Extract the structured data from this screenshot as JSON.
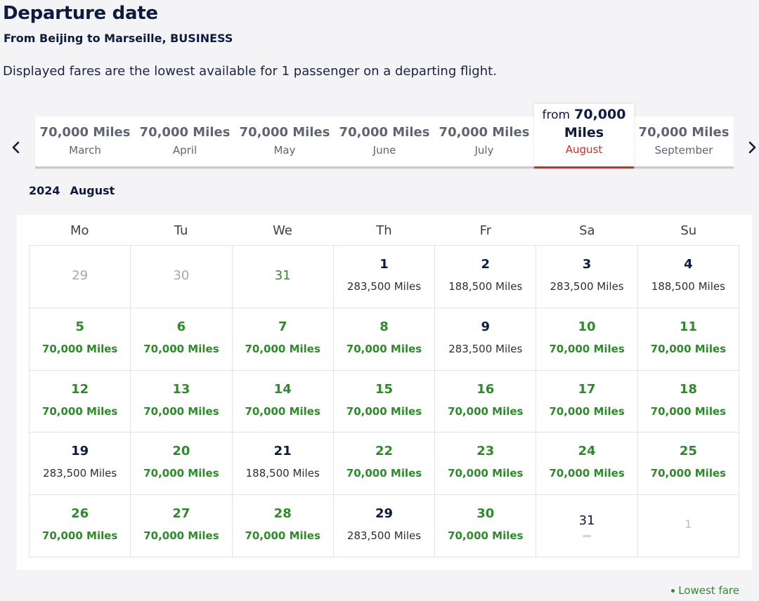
{
  "header": {
    "title": "Departure date",
    "subtitle": "From Beijing to Marseille, BUSINESS",
    "info": "Displayed fares are the lowest available for 1 passenger on a departing flight."
  },
  "months": [
    {
      "miles": "70,000 Miles",
      "name": "March"
    },
    {
      "miles": "70,000 Miles",
      "name": "April"
    },
    {
      "miles": "70,000 Miles",
      "name": "May"
    },
    {
      "miles": "70,000 Miles",
      "name": "June"
    },
    {
      "miles": "70,000 Miles",
      "name": "July"
    },
    {
      "miles": "70,000 Miles",
      "name": "September"
    }
  ],
  "active_month": {
    "prefix": "from",
    "amount": "70,000",
    "unit": "Miles",
    "name": "August"
  },
  "calendar": {
    "year": "2024",
    "month": "August",
    "weekdays": [
      "Mo",
      "Tu",
      "We",
      "Th",
      "Fr",
      "Sa",
      "Su"
    ],
    "days": [
      {
        "num": "29",
        "price": "",
        "kind": "out"
      },
      {
        "num": "30",
        "price": "",
        "kind": "out"
      },
      {
        "num": "31",
        "price": "",
        "kind": "out-green"
      },
      {
        "num": "1",
        "price": "283,500 Miles",
        "kind": "normal"
      },
      {
        "num": "2",
        "price": "188,500 Miles",
        "kind": "normal"
      },
      {
        "num": "3",
        "price": "283,500 Miles",
        "kind": "normal"
      },
      {
        "num": "4",
        "price": "188,500 Miles",
        "kind": "normal"
      },
      {
        "num": "5",
        "price": "70,000 Miles",
        "kind": "low"
      },
      {
        "num": "6",
        "price": "70,000 Miles",
        "kind": "low"
      },
      {
        "num": "7",
        "price": "70,000 Miles",
        "kind": "low"
      },
      {
        "num": "8",
        "price": "70,000 Miles",
        "kind": "low"
      },
      {
        "num": "9",
        "price": "283,500 Miles",
        "kind": "normal"
      },
      {
        "num": "10",
        "price": "70,000 Miles",
        "kind": "low"
      },
      {
        "num": "11",
        "price": "70,000 Miles",
        "kind": "low"
      },
      {
        "num": "12",
        "price": "70,000 Miles",
        "kind": "low"
      },
      {
        "num": "13",
        "price": "70,000 Miles",
        "kind": "low"
      },
      {
        "num": "14",
        "price": "70,000 Miles",
        "kind": "low"
      },
      {
        "num": "15",
        "price": "70,000 Miles",
        "kind": "low"
      },
      {
        "num": "16",
        "price": "70,000 Miles",
        "kind": "low"
      },
      {
        "num": "17",
        "price": "70,000 Miles",
        "kind": "low"
      },
      {
        "num": "18",
        "price": "70,000 Miles",
        "kind": "low"
      },
      {
        "num": "19",
        "price": "283,500 Miles",
        "kind": "normal"
      },
      {
        "num": "20",
        "price": "70,000 Miles",
        "kind": "low"
      },
      {
        "num": "21",
        "price": "188,500 Miles",
        "kind": "normal"
      },
      {
        "num": "22",
        "price": "70,000 Miles",
        "kind": "low"
      },
      {
        "num": "23",
        "price": "70,000 Miles",
        "kind": "low"
      },
      {
        "num": "24",
        "price": "70,000 Miles",
        "kind": "low"
      },
      {
        "num": "25",
        "price": "70,000 Miles",
        "kind": "low"
      },
      {
        "num": "26",
        "price": "70,000 Miles",
        "kind": "low"
      },
      {
        "num": "27",
        "price": "70,000 Miles",
        "kind": "low"
      },
      {
        "num": "28",
        "price": "70,000 Miles",
        "kind": "low"
      },
      {
        "num": "29",
        "price": "283,500 Miles",
        "kind": "normal"
      },
      {
        "num": "30",
        "price": "70,000 Miles",
        "kind": "low"
      },
      {
        "num": "31",
        "price": "",
        "kind": "plain"
      },
      {
        "num": "1",
        "price": "",
        "kind": "next"
      }
    ]
  },
  "legend": {
    "label": "Lowest fare"
  },
  "colors": {
    "navy": "#0d1b3e",
    "lowest_fare_green": "#2f8a2c",
    "active_red": "#c8312a"
  },
  "icons": {
    "prev": "chevron-left-icon",
    "next": "chevron-right-icon",
    "legend": "dot-icon"
  }
}
